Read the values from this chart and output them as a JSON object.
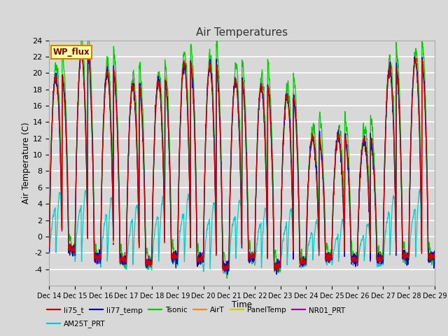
{
  "title": "Air Temperatures",
  "xlabel": "Time",
  "ylabel": "Air Temperature (C)",
  "ylim": [
    -6,
    24
  ],
  "yticks": [
    -4,
    -2,
    0,
    2,
    4,
    6,
    8,
    10,
    12,
    14,
    16,
    18,
    20,
    22,
    24
  ],
  "x_labels": [
    "Dec 14",
    "Dec 15",
    "Dec 16",
    "Dec 17",
    "Dec 18",
    "Dec 19",
    "Dec 20",
    "Dec 21",
    "Dec 22",
    "Dec 23",
    "Dec 24",
    "Dec 25",
    "Dec 26",
    "Dec 27",
    "Dec 28",
    "Dec 29"
  ],
  "series": [
    {
      "name": "li75_t",
      "color": "#cc0000"
    },
    {
      "name": "li77_temp",
      "color": "#0000cc"
    },
    {
      "name": "Tsonic",
      "color": "#00cc00"
    },
    {
      "name": "AirT",
      "color": "#ff8800"
    },
    {
      "name": "PanelTemp",
      "color": "#cccc00"
    },
    {
      "name": "NR01_PRT",
      "color": "#aa00aa"
    },
    {
      "name": "AM25T_PRT",
      "color": "#00cccc"
    }
  ],
  "wp_flux_label": "WP_flux",
  "bg_color": "#d8d8d8",
  "grid_color": "#ffffff",
  "n_days": 15,
  "pts_per_day": 144,
  "title_fontsize": 11,
  "legend_fontsize": 8
}
